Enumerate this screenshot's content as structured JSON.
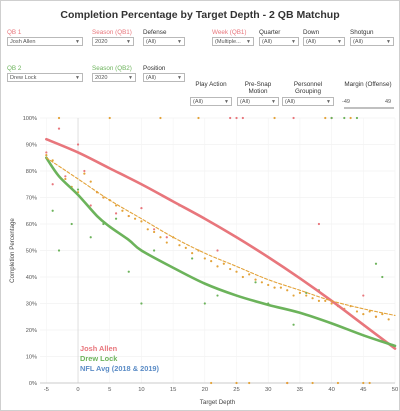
{
  "title": "Completion Percentage by Target Depth - 2 QB Matchup",
  "colors": {
    "red": "#e8767c",
    "green": "#6cb35b",
    "blue": "#5b8cc6",
    "orange": "#e3a33a",
    "gray": "#333333"
  },
  "filters_row1": [
    {
      "label": "QB 1",
      "value": "Josh Allen",
      "label_color": "#e8767c"
    },
    {
      "label": "Season (QB1)",
      "value": "2020",
      "label_color": "#e8767c"
    },
    {
      "label": "Defense",
      "value": "(All)",
      "label_color": "#333333"
    },
    {
      "label": "Week (QB1)",
      "value": "(Multiple...",
      "label_color": "#e8767c"
    },
    {
      "label": "Quarter",
      "value": "(All)",
      "label_color": "#333333"
    },
    {
      "label": "Down",
      "value": "(All)",
      "label_color": "#333333"
    },
    {
      "label": "Shotgun",
      "value": "(All)",
      "label_color": "#333333"
    }
  ],
  "filters_row2": [
    {
      "label": "QB 2",
      "value": "Drew Lock",
      "label_color": "#6cb35b"
    },
    {
      "label": "Season (QB2)",
      "value": "2020",
      "label_color": "#6cb35b"
    },
    {
      "label": "Position",
      "value": "(All)",
      "label_color": "#333333"
    },
    {
      "label": "Play Action",
      "value": "(All)",
      "label_color": "#333333"
    },
    {
      "label": "Pre-Snap Motion",
      "value": "(All)",
      "label_color": "#333333"
    },
    {
      "label": "Personnel Grouping",
      "value": "(All)",
      "label_color": "#333333"
    }
  ],
  "margin_slider": {
    "label": "Margin (Offense)",
    "min_label": "-49",
    "max_label": "49"
  },
  "chart_data": {
    "type": "scatter",
    "xlabel": "Target Depth",
    "ylabel": "Completion Percentage",
    "xlim": [
      -6,
      50
    ],
    "ylim": [
      0,
      100
    ],
    "x_ticks": [
      "-5",
      "0",
      "5",
      "10",
      "15",
      "20",
      "25",
      "30",
      "35",
      "40",
      "45",
      "50"
    ],
    "y_ticks": [
      "0%",
      "10%",
      "20%",
      "30%",
      "40%",
      "50%",
      "60%",
      "70%",
      "80%",
      "90%",
      "100%"
    ],
    "legend": [
      {
        "name": "Josh Allen",
        "color": "#e8767c"
      },
      {
        "name": "Drew Lock",
        "color": "#6cb35b"
      },
      {
        "name": "NFL Avg (2018 & 2019)",
        "color": "#5b8cc6"
      }
    ],
    "series": [
      {
        "name": "Josh Allen",
        "style": "trend-line",
        "x": [
          -5,
          0,
          5,
          10,
          15,
          20,
          25,
          30,
          35,
          40,
          45,
          50
        ],
        "y": [
          92,
          87,
          81,
          75,
          68.5,
          62,
          55,
          47.5,
          39.5,
          31,
          22,
          13
        ]
      },
      {
        "name": "Drew Lock",
        "style": "trend-line",
        "x": [
          -5,
          -3,
          0,
          3,
          5,
          8,
          10,
          15,
          20,
          25,
          30,
          35,
          40,
          45,
          50
        ],
        "y": [
          85,
          78,
          71,
          63,
          59,
          54,
          50,
          43.5,
          37.5,
          33,
          29.5,
          26.5,
          22.5,
          18,
          14
        ]
      },
      {
        "name": "NFL Avg (2018 & 2019)",
        "style": "dashed-line",
        "x": [
          -5,
          0,
          5,
          10,
          15,
          20,
          25,
          30,
          35,
          40,
          45,
          50
        ],
        "y": [
          85,
          77,
          69,
          62,
          55,
          49,
          44,
          39,
          35,
          31,
          28,
          25.5
        ]
      }
    ],
    "points": [
      {
        "name": "Josh Allen",
        "color": "#e8767c",
        "x": [
          -5,
          -4,
          -3,
          -2,
          -1,
          0,
          1,
          2,
          3,
          4,
          6,
          8,
          10,
          12,
          14,
          22,
          24,
          25,
          26,
          33,
          34,
          38,
          40,
          45,
          47
        ],
        "y": [
          87,
          75,
          96,
          78,
          88,
          90,
          80,
          67,
          72,
          70,
          64,
          63,
          66,
          58,
          55,
          50,
          100,
          100,
          100,
          0,
          100,
          60,
          100,
          33,
          25
        ]
      },
      {
        "name": "Drew Lock",
        "color": "#6cb35b",
        "x": [
          -4,
          -3,
          -1,
          0,
          2,
          4,
          6,
          8,
          10,
          12,
          16,
          18,
          20,
          22,
          28,
          30,
          34,
          36,
          38,
          40,
          42,
          44,
          47,
          48
        ],
        "y": [
          65,
          50,
          60,
          73,
          55,
          60,
          62,
          42,
          30,
          50,
          67,
          47,
          30,
          33,
          38,
          30,
          22,
          34,
          35,
          100,
          100,
          100,
          45,
          40
        ]
      },
      {
        "name": "NFL Avg (2018 & 2019)",
        "color": "#e3a33a",
        "x": [
          -5,
          -4,
          -3,
          -2,
          -1,
          0,
          1,
          2,
          3,
          4,
          5,
          6,
          7,
          8,
          9,
          10,
          11,
          12,
          13,
          14,
          15,
          16,
          17,
          18,
          19,
          20,
          21,
          22,
          23,
          24,
          25,
          26,
          27,
          28,
          29,
          30,
          31,
          32,
          33,
          34,
          35,
          36,
          37,
          38,
          39,
          40,
          41,
          42,
          43,
          44,
          45,
          46,
          47,
          48,
          49
        ],
        "y": [
          86,
          84,
          78,
          77,
          74,
          72,
          79,
          76,
          72,
          70,
          69,
          67,
          65,
          63,
          62,
          61,
          58,
          57,
          55,
          53,
          55,
          52,
          51,
          49,
          50,
          47,
          46,
          44,
          45,
          43,
          42,
          40,
          41,
          39,
          38,
          37,
          36,
          36,
          35,
          33,
          34,
          33,
          32,
          31,
          31,
          30,
          29,
          28,
          29,
          27,
          26,
          27,
          25,
          26,
          24
        ]
      },
      {
        "name": "NFL Avg (2018 & 2019) extremes",
        "color": "#e3a33a",
        "x": [
          -3,
          5,
          13,
          19,
          21,
          25,
          27,
          31,
          33,
          37,
          39,
          41,
          43,
          45,
          46
        ],
        "y": [
          100,
          100,
          100,
          100,
          0,
          0,
          0,
          100,
          0,
          0,
          100,
          0,
          100,
          0,
          0
        ]
      }
    ]
  }
}
